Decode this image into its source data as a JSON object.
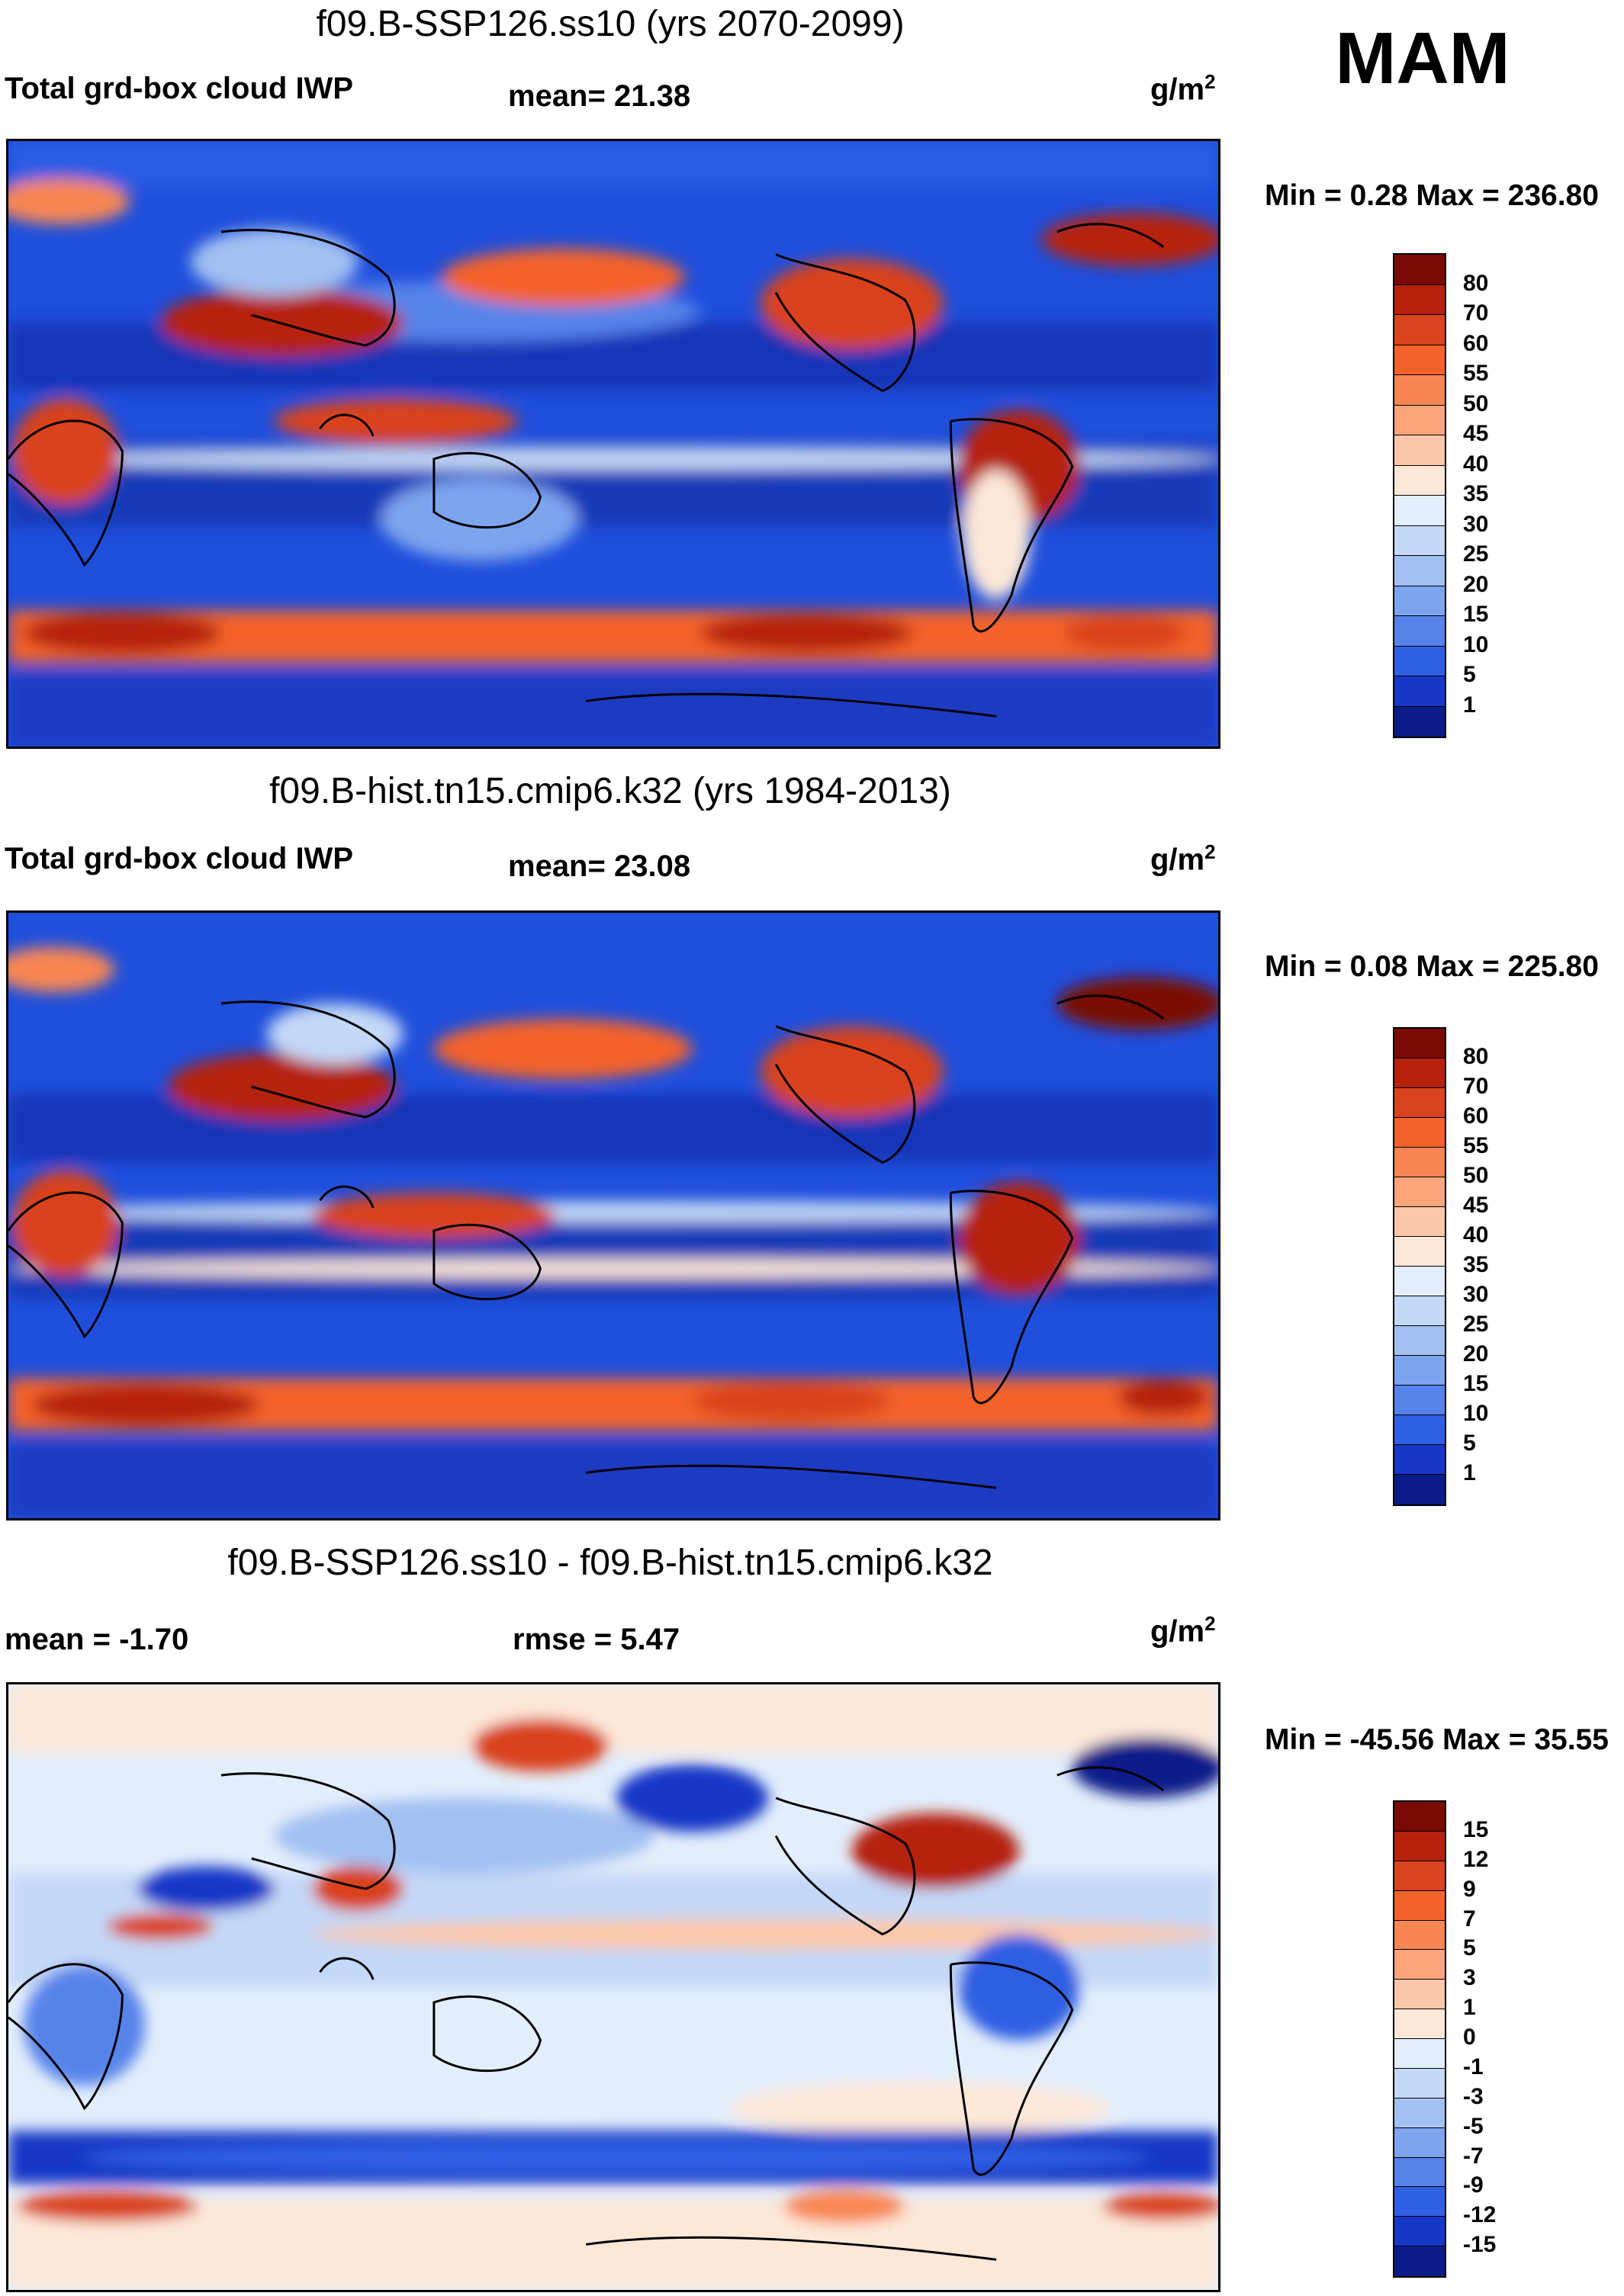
{
  "season": "MAM",
  "panels": [
    {
      "title": "f09.B-SSP126.ss10 (yrs 2070-2099)",
      "left_label": "Total grd-box cloud IWP",
      "center_label": "mean=  21.38",
      "units_base": "g/m",
      "units_sup": "2",
      "minmax": "Min =   0.28 Max = 236.80",
      "colorbar": {
        "levels": [
          "80",
          "70",
          "60",
          "55",
          "50",
          "45",
          "40",
          "35",
          "30",
          "25",
          "20",
          "15",
          "10",
          "5",
          "1"
        ],
        "colors": [
          "#7a0a02",
          "#b5210b",
          "#d9431e",
          "#f4622c",
          "#f88653",
          "#faa57b",
          "#fcc7a9",
          "#fde8d8",
          "#e3eefc",
          "#c4d8f7",
          "#a2c0f2",
          "#7da4ee",
          "#5683ea",
          "#2f5fe3",
          "#1638c7",
          "#0b1b8a"
        ]
      }
    },
    {
      "title": "f09.B-hist.tn15.cmip6.k32 (yrs 1984-2013)",
      "left_label": "Total grd-box cloud IWP",
      "center_label": "mean=  23.08",
      "units_base": "g/m",
      "units_sup": "2",
      "minmax": "Min =   0.08 Max = 225.80",
      "colorbar": {
        "levels": [
          "80",
          "70",
          "60",
          "55",
          "50",
          "45",
          "40",
          "35",
          "30",
          "25",
          "20",
          "15",
          "10",
          "5",
          "1"
        ],
        "colors": [
          "#7a0a02",
          "#b5210b",
          "#d9431e",
          "#f4622c",
          "#f88653",
          "#faa57b",
          "#fcc7a9",
          "#fde8d8",
          "#e3eefc",
          "#c4d8f7",
          "#a2c0f2",
          "#7da4ee",
          "#5683ea",
          "#2f5fe3",
          "#1638c7",
          "#0b1b8a"
        ]
      }
    },
    {
      "title": "f09.B-SSP126.ss10 - f09.B-hist.tn15.cmip6.k32",
      "left_label": "mean =  -1.70",
      "center_label": "rmse =    5.47",
      "units_base": "g/m",
      "units_sup": "2",
      "minmax": "Min = -45.56 Max =  35.55",
      "colorbar": {
        "levels": [
          "15",
          "12",
          "9",
          "7",
          "5",
          "3",
          "1",
          "0",
          "-1",
          "-3",
          "-5",
          "-7",
          "-9",
          "-12",
          "-15"
        ],
        "colors": [
          "#7a0a02",
          "#b5210b",
          "#d9431e",
          "#f4622c",
          "#f88653",
          "#faa57b",
          "#fcc7a9",
          "#fde8d8",
          "#e3eefc",
          "#c4d8f7",
          "#a2c0f2",
          "#7da4ee",
          "#5683ea",
          "#2f5fe3",
          "#1638c7",
          "#0b1b8a"
        ]
      }
    }
  ]
}
